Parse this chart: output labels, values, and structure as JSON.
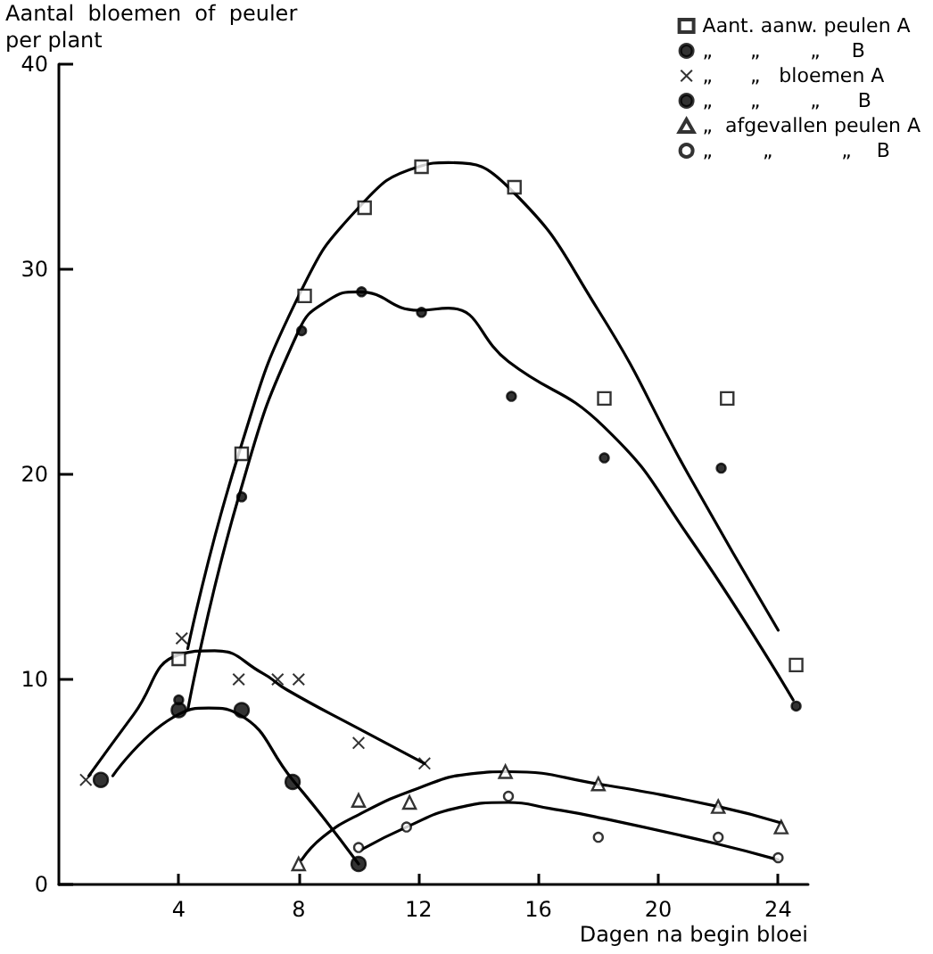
{
  "chart_data": {
    "type": "scatter",
    "ylabel": "Aantal  bloemen  of  peuler\nper plant",
    "xlabel": "Dagen na begin bloei",
    "xlim": [
      0,
      25
    ],
    "xticks": [
      4,
      8,
      12,
      16,
      20,
      24
    ],
    "ylim": [
      0,
      40
    ],
    "yticks": [
      0,
      10,
      20,
      30,
      40
    ],
    "grid": false,
    "legend": "top right",
    "series": [
      {
        "name": "Aant. aanw. peulen A",
        "marker": "square",
        "color": "#000000",
        "x": [
          4,
          6.1,
          8.2,
          10.2,
          12.1,
          15.2,
          18.2,
          22.3,
          24.6
        ],
        "values": [
          11,
          21,
          28.7,
          33,
          35,
          34,
          23.7,
          23.7,
          10.7
        ]
      },
      {
        "name": "„      „        „     B",
        "marker": "circle",
        "color": "#000000",
        "x": [
          4,
          6.1,
          8.1,
          10.1,
          12.1,
          15.1,
          18.2,
          22.1,
          24.6
        ],
        "values": [
          9,
          18.9,
          27,
          28.9,
          27.9,
          23.8,
          20.8,
          20.3,
          8.7
        ]
      },
      {
        "name": "„      „   bloemen A",
        "marker": "cross",
        "color": "#000000",
        "x": [
          0.9,
          4.1,
          6,
          7.3,
          8,
          10,
          12.2
        ],
        "values": [
          5.1,
          12,
          10,
          10,
          10,
          6.9,
          5.9
        ]
      },
      {
        "name": "„      „        „      B",
        "marker": "circle",
        "color": "#000000",
        "x": [
          1.4,
          4,
          6.1,
          7.8,
          10
        ],
        "values": [
          5.1,
          8.5,
          8.5,
          5,
          1
        ]
      },
      {
        "name": "„  afgevallen peulen A",
        "marker": "triangle",
        "color": "#000000",
        "x": [
          8,
          10,
          11.7,
          14.9,
          18,
          22,
          24.1
        ],
        "values": [
          1,
          4.1,
          4,
          5.5,
          4.9,
          3.8,
          2.8
        ]
      },
      {
        "name": "„        „           „    B",
        "marker": "circle",
        "color": "#000000",
        "x": [
          10,
          11.6,
          15,
          18,
          22,
          24
        ],
        "values": [
          1.8,
          2.8,
          4.3,
          2.3,
          2.3,
          1.3
        ]
      },
      {
        "type": "line",
        "marker": "none",
        "color": "#000000",
        "x": [
          4.3,
          6,
          8,
          10,
          12,
          13,
          15,
          18,
          21,
          24
        ],
        "values": [
          11.5,
          21,
          28.7,
          33,
          35,
          35.2,
          34,
          28,
          20,
          12.4
        ]
      },
      {
        "type": "line",
        "marker": "none",
        "color": "#000000",
        "x": [
          4.3,
          6,
          8,
          9,
          10,
          12,
          13,
          15,
          18.2,
          21,
          24.5
        ],
        "values": [
          8.5,
          18.9,
          27,
          28.5,
          28.9,
          28,
          28.1,
          25.5,
          22.3,
          17,
          9
        ]
      },
      {
        "type": "line",
        "marker": "none",
        "color": "#000000",
        "x": [
          1,
          2.5,
          4,
          5.2,
          6.8,
          7.6,
          10,
          12.2
        ],
        "values": [
          5.3,
          8.3,
          11.2,
          11.4,
          10.3,
          9.5,
          7.6,
          5.9
        ]
      },
      {
        "type": "line",
        "marker": "none",
        "color": "#000000",
        "x": [
          1.8,
          4,
          5,
          6,
          7.8,
          8.8,
          10
        ],
        "values": [
          5.3,
          8.3,
          8.6,
          8.3,
          5.1,
          3.3,
          1
        ]
      },
      {
        "type": "line",
        "marker": "none",
        "color": "#000000",
        "x": [
          8.1,
          8.8,
          10,
          12,
          13.75,
          15,
          18,
          22,
          24.1
        ],
        "values": [
          1.2,
          2.3,
          3.4,
          4.7,
          5.4,
          5.5,
          4.9,
          3.8,
          3
        ]
      },
      {
        "type": "line",
        "marker": "none",
        "color": "#000000",
        "x": [
          10.1,
          11.6,
          13.2,
          15,
          16.4,
          17.9,
          21.9,
          24
        ],
        "values": [
          1.7,
          2.8,
          3.7,
          4,
          3.7,
          3.3,
          2,
          1.2
        ]
      }
    ]
  }
}
